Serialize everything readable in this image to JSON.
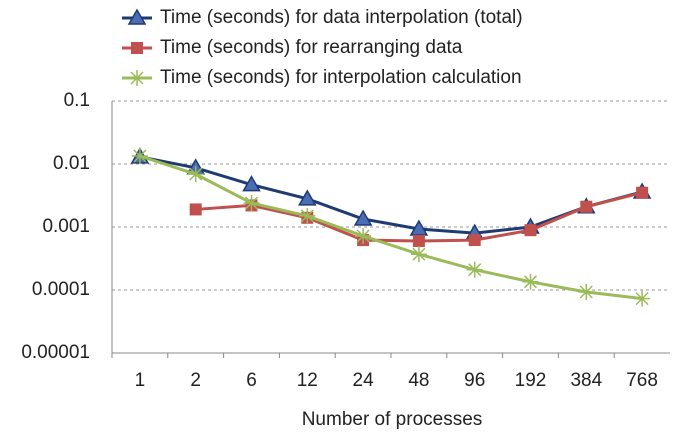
{
  "chart_data": {
    "type": "line",
    "log_scale_y": true,
    "grid": true,
    "legend": "top",
    "x_label": "Number of processes",
    "categories": [
      "1",
      "2",
      "6",
      "12",
      "24",
      "48",
      "96",
      "192",
      "384",
      "768"
    ],
    "ylim": [
      1e-05,
      0.1
    ],
    "yticks": [
      {
        "value": 1e-05,
        "label": "0.00001"
      },
      0.0001,
      0.001,
      0.01,
      0.1
    ],
    "series": [
      {
        "name": "Time (seconds) for data interpolation (total)",
        "color": "#1f3b73",
        "marker": "triangle",
        "values": [
          0.013,
          0.0087,
          0.0047,
          0.0028,
          0.00134,
          0.00093,
          0.0008,
          0.001,
          0.0021,
          0.0036
        ]
      },
      {
        "name": "Time (seconds) for rearranging data",
        "color": "#c0504d",
        "marker": "square",
        "values": [
          null,
          0.0019,
          0.0022,
          0.0014,
          0.00062,
          0.0006,
          0.00062,
          0.00089,
          0.0021,
          0.0035
        ]
      },
      {
        "name": "Time (seconds) for interpolation calculation",
        "color": "#9bbb59",
        "marker": "asterisk",
        "values": [
          0.0134,
          0.0069,
          0.0024,
          0.0015,
          0.00072,
          0.00037,
          0.00021,
          0.000135,
          9.3e-05,
          7.3e-05
        ]
      }
    ]
  }
}
